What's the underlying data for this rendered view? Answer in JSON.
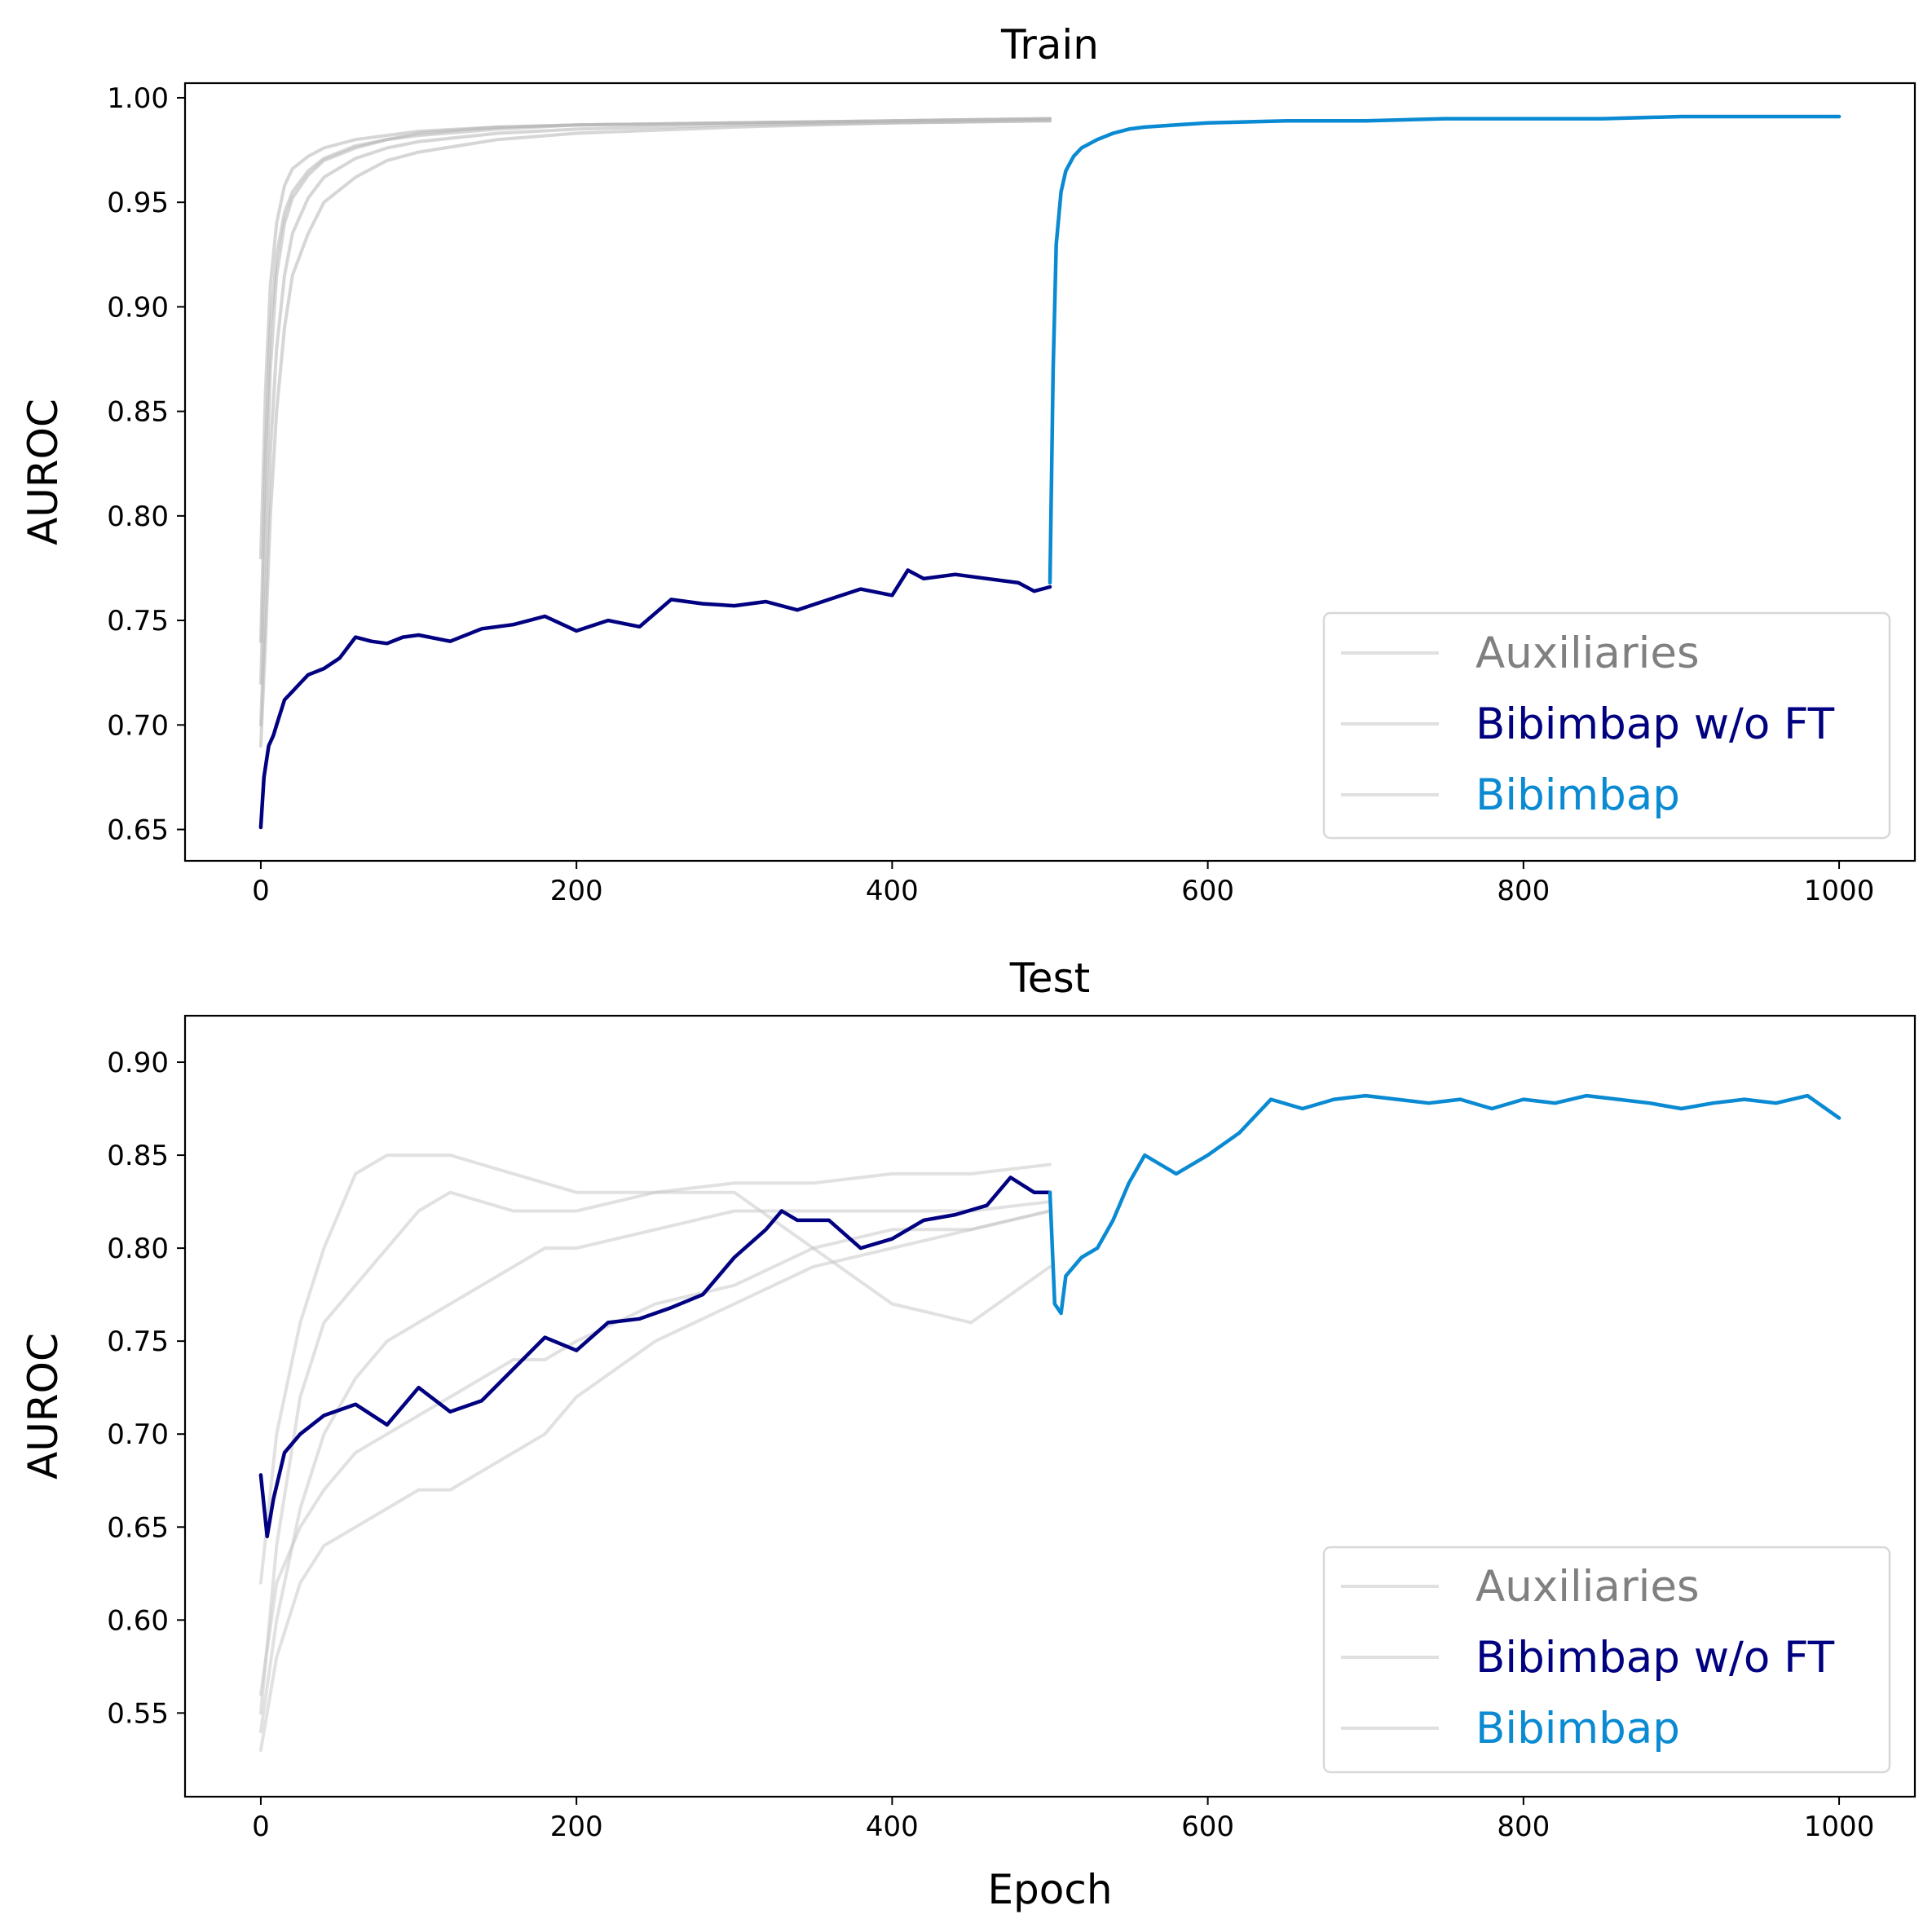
{
  "chart_data": [
    {
      "type": "line",
      "title": "Train",
      "xlabel": "",
      "ylabel": "AUROC",
      "xlim": [
        -48,
        1048
      ],
      "ylim": [
        0.635,
        1.007
      ],
      "xticks": [
        0,
        200,
        400,
        600,
        800,
        1000
      ],
      "xtick_labels": [
        "0",
        "200",
        "400",
        "600",
        "800",
        "1000"
      ],
      "yticks": [
        0.65,
        0.7,
        0.75,
        0.8,
        0.85,
        0.9,
        0.95,
        1.0
      ],
      "ytick_labels": [
        "0.65",
        "0.70",
        "0.75",
        "0.80",
        "0.85",
        "0.90",
        "0.95",
        "1.00"
      ],
      "grid": false,
      "legend": {
        "position": "lower-right",
        "entries": [
          {
            "label": "Auxiliaries",
            "text_color": "#808080",
            "line_color": "#e0e0e0"
          },
          {
            "label": "Bibimbap w/o FT",
            "text_color": "#000080",
            "line_color": "#e0e0e0"
          },
          {
            "label": "Bibimbap",
            "text_color": "#0a8ad2",
            "line_color": "#e0e0e0"
          }
        ]
      },
      "series": [
        {
          "name": "Auxiliaries",
          "color": "#b4b4b4",
          "x": [
            0,
            3,
            6,
            10,
            15,
            20,
            30,
            40,
            60,
            80,
            100,
            150,
            200,
            300,
            400,
            500
          ],
          "y": [
            0.74,
            0.83,
            0.89,
            0.925,
            0.945,
            0.955,
            0.965,
            0.971,
            0.977,
            0.98,
            0.983,
            0.986,
            0.987,
            0.988,
            0.989,
            0.99
          ]
        },
        {
          "name": "Auxiliaries",
          "color": "#b4b4b4",
          "x": [
            0,
            3,
            6,
            10,
            15,
            20,
            30,
            40,
            60,
            80,
            100,
            150,
            200,
            300,
            400,
            500
          ],
          "y": [
            0.72,
            0.8,
            0.87,
            0.915,
            0.94,
            0.952,
            0.963,
            0.97,
            0.976,
            0.98,
            0.982,
            0.985,
            0.987,
            0.988,
            0.989,
            0.99
          ]
        },
        {
          "name": "Auxiliaries",
          "color": "#b4b4b4",
          "x": [
            0,
            3,
            6,
            10,
            15,
            20,
            30,
            40,
            60,
            80,
            100,
            150,
            200,
            300,
            400,
            500
          ],
          "y": [
            0.7,
            0.76,
            0.83,
            0.88,
            0.915,
            0.935,
            0.952,
            0.962,
            0.971,
            0.976,
            0.979,
            0.983,
            0.985,
            0.987,
            0.988,
            0.989
          ]
        },
        {
          "name": "Auxiliaries",
          "color": "#b4b4b4",
          "x": [
            0,
            3,
            6,
            10,
            15,
            20,
            30,
            40,
            60,
            80,
            100,
            150,
            200,
            300,
            400,
            500
          ],
          "y": [
            0.69,
            0.74,
            0.8,
            0.85,
            0.89,
            0.915,
            0.935,
            0.95,
            0.962,
            0.97,
            0.974,
            0.98,
            0.983,
            0.986,
            0.988,
            0.989
          ]
        },
        {
          "name": "Auxiliaries",
          "color": "#b4b4b4",
          "x": [
            0,
            3,
            6,
            10,
            15,
            20,
            30,
            40,
            60,
            80,
            100,
            150,
            200,
            300,
            400,
            500
          ],
          "y": [
            0.78,
            0.86,
            0.91,
            0.94,
            0.958,
            0.966,
            0.972,
            0.976,
            0.98,
            0.982,
            0.984,
            0.986,
            0.987,
            0.988,
            0.989,
            0.99
          ]
        },
        {
          "name": "Bibimbap w/o FT",
          "color": "#000080",
          "x": [
            0,
            2,
            5,
            8,
            10,
            15,
            20,
            25,
            30,
            40,
            50,
            60,
            70,
            80,
            90,
            100,
            120,
            140,
            160,
            180,
            200,
            220,
            240,
            260,
            280,
            300,
            320,
            340,
            360,
            380,
            400,
            410,
            420,
            440,
            460,
            480,
            490,
            500
          ],
          "y": [
            0.651,
            0.675,
            0.69,
            0.695,
            0.7,
            0.712,
            0.716,
            0.72,
            0.724,
            0.727,
            0.732,
            0.742,
            0.74,
            0.739,
            0.742,
            0.743,
            0.74,
            0.746,
            0.748,
            0.752,
            0.745,
            0.75,
            0.747,
            0.76,
            0.758,
            0.757,
            0.759,
            0.755,
            0.76,
            0.765,
            0.762,
            0.774,
            0.77,
            0.772,
            0.77,
            0.768,
            0.764,
            0.766
          ]
        },
        {
          "name": "Bibimbap",
          "color": "#0a8ad2",
          "x": [
            500,
            502,
            504,
            507,
            510,
            515,
            520,
            530,
            540,
            550,
            560,
            580,
            600,
            650,
            700,
            750,
            800,
            850,
            900,
            950,
            1000
          ],
          "y": [
            0.768,
            0.87,
            0.93,
            0.955,
            0.965,
            0.972,
            0.976,
            0.98,
            0.983,
            0.985,
            0.986,
            0.987,
            0.988,
            0.989,
            0.989,
            0.99,
            0.99,
            0.99,
            0.991,
            0.991,
            0.991
          ]
        }
      ]
    },
    {
      "type": "line",
      "title": "Test",
      "xlabel": "Epoch",
      "ylabel": "AUROC",
      "xlim": [
        -48,
        1048
      ],
      "ylim": [
        0.505,
        0.925
      ],
      "xticks": [
        0,
        200,
        400,
        600,
        800,
        1000
      ],
      "xtick_labels": [
        "0",
        "200",
        "400",
        "600",
        "800",
        "1000"
      ],
      "yticks": [
        0.55,
        0.6,
        0.65,
        0.7,
        0.75,
        0.8,
        0.85,
        0.9
      ],
      "ytick_labels": [
        "0.55",
        "0.60",
        "0.65",
        "0.70",
        "0.75",
        "0.80",
        "0.85",
        "0.90"
      ],
      "grid": false,
      "legend": {
        "position": "lower-right",
        "entries": [
          {
            "label": "Auxiliaries",
            "text_color": "#808080",
            "line_color": "#e0e0e0"
          },
          {
            "label": "Bibimbap w/o FT",
            "text_color": "#000080",
            "line_color": "#e0e0e0"
          },
          {
            "label": "Bibimbap",
            "text_color": "#0a8ad2",
            "line_color": "#e0e0e0"
          }
        ]
      },
      "series": [
        {
          "name": "Auxiliaries",
          "color": "#c8c8c8",
          "x": [
            0,
            10,
            25,
            40,
            60,
            80,
            100,
            120,
            140,
            160,
            180,
            200,
            250,
            300,
            350,
            400,
            450,
            500
          ],
          "y": [
            0.62,
            0.7,
            0.76,
            0.8,
            0.84,
            0.85,
            0.85,
            0.85,
            0.845,
            0.84,
            0.835,
            0.83,
            0.83,
            0.835,
            0.835,
            0.84,
            0.84,
            0.845
          ]
        },
        {
          "name": "Auxiliaries",
          "color": "#c8c8c8",
          "x": [
            0,
            10,
            25,
            40,
            60,
            80,
            100,
            120,
            140,
            160,
            180,
            200,
            250,
            300,
            350,
            400,
            450,
            500
          ],
          "y": [
            0.55,
            0.64,
            0.72,
            0.76,
            0.78,
            0.8,
            0.82,
            0.83,
            0.825,
            0.82,
            0.82,
            0.82,
            0.83,
            0.83,
            0.8,
            0.77,
            0.76,
            0.79
          ]
        },
        {
          "name": "Auxiliaries",
          "color": "#c8c8c8",
          "x": [
            0,
            10,
            25,
            40,
            60,
            80,
            100,
            120,
            140,
            160,
            180,
            200,
            250,
            300,
            350,
            400,
            450,
            500
          ],
          "y": [
            0.54,
            0.6,
            0.66,
            0.7,
            0.73,
            0.75,
            0.76,
            0.77,
            0.78,
            0.79,
            0.8,
            0.8,
            0.81,
            0.82,
            0.82,
            0.82,
            0.82,
            0.825
          ]
        },
        {
          "name": "Auxiliaries",
          "color": "#c8c8c8",
          "x": [
            0,
            10,
            25,
            40,
            60,
            80,
            100,
            120,
            140,
            160,
            180,
            200,
            250,
            300,
            350,
            400,
            450,
            500
          ],
          "y": [
            0.53,
            0.58,
            0.62,
            0.64,
            0.65,
            0.66,
            0.67,
            0.67,
            0.68,
            0.69,
            0.7,
            0.72,
            0.75,
            0.77,
            0.79,
            0.8,
            0.81,
            0.82
          ]
        },
        {
          "name": "Auxiliaries",
          "color": "#c8c8c8",
          "x": [
            0,
            10,
            25,
            40,
            60,
            80,
            100,
            120,
            140,
            160,
            180,
            200,
            250,
            300,
            350,
            400,
            450,
            500
          ],
          "y": [
            0.56,
            0.62,
            0.65,
            0.67,
            0.69,
            0.7,
            0.71,
            0.72,
            0.73,
            0.74,
            0.74,
            0.75,
            0.77,
            0.78,
            0.8,
            0.81,
            0.81,
            0.82
          ]
        },
        {
          "name": "Bibimbap w/o FT",
          "color": "#000080",
          "x": [
            0,
            4,
            8,
            15,
            25,
            40,
            60,
            80,
            100,
            120,
            140,
            160,
            180,
            200,
            220,
            240,
            260,
            280,
            300,
            320,
            330,
            340,
            360,
            380,
            400,
            420,
            440,
            460,
            475,
            490,
            500
          ],
          "y": [
            0.678,
            0.645,
            0.665,
            0.69,
            0.7,
            0.71,
            0.716,
            0.705,
            0.725,
            0.712,
            0.718,
            0.735,
            0.752,
            0.745,
            0.76,
            0.762,
            0.768,
            0.775,
            0.795,
            0.81,
            0.82,
            0.815,
            0.815,
            0.8,
            0.805,
            0.815,
            0.818,
            0.823,
            0.838,
            0.83,
            0.83
          ]
        },
        {
          "name": "Bibimbap",
          "color": "#0a8ad2",
          "x": [
            500,
            503,
            507,
            510,
            520,
            530,
            540,
            550,
            560,
            570,
            580,
            600,
            620,
            640,
            660,
            680,
            700,
            720,
            740,
            760,
            780,
            800,
            820,
            840,
            860,
            880,
            900,
            920,
            940,
            960,
            980,
            1000
          ],
          "y": [
            0.83,
            0.77,
            0.765,
            0.785,
            0.795,
            0.8,
            0.815,
            0.835,
            0.85,
            0.845,
            0.84,
            0.85,
            0.862,
            0.88,
            0.875,
            0.88,
            0.882,
            0.88,
            0.878,
            0.88,
            0.875,
            0.88,
            0.878,
            0.882,
            0.88,
            0.878,
            0.875,
            0.878,
            0.88,
            0.878,
            0.882,
            0.87
          ]
        }
      ]
    }
  ]
}
